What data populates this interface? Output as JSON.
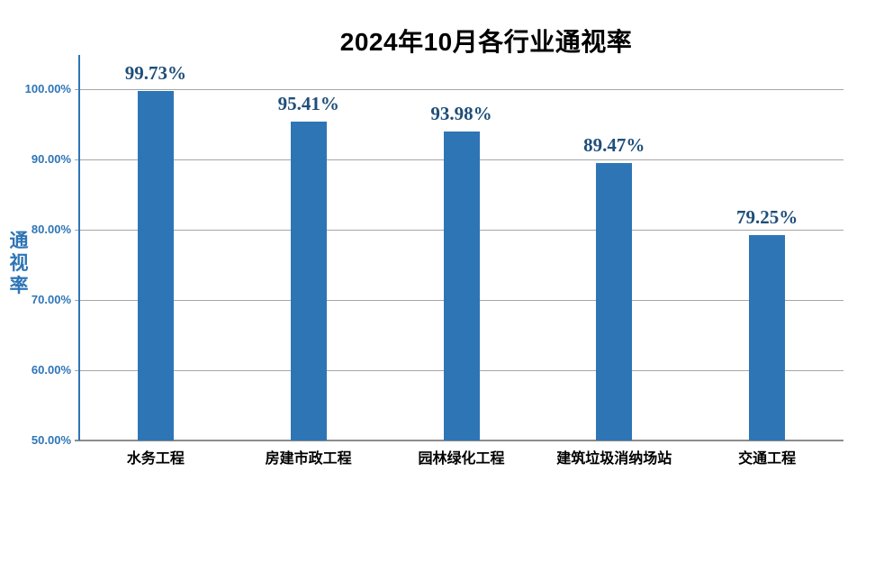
{
  "chart_data": {
    "type": "bar",
    "title": "2024年10月各行业通视率",
    "categories": [
      "水务工程",
      "房建市政工程",
      "园林绿化工程",
      "建筑垃圾消纳场站",
      "交通工程"
    ],
    "values": [
      99.73,
      95.41,
      93.98,
      89.47,
      79.25
    ],
    "value_labels": [
      "99.73%",
      "95.41%",
      "93.98%",
      "89.47%",
      "79.25%"
    ],
    "xlabel": "",
    "ylabel": "通视率",
    "ylim": [
      50,
      100
    ],
    "ytick_values": [
      50,
      60,
      70,
      80,
      90,
      100
    ],
    "ytick_labels": [
      "50.00%",
      "60.00%",
      "70.00%",
      "80.00%",
      "90.00%",
      "100.00%"
    ],
    "grid": true,
    "legend": "none",
    "colors": {
      "bar": "#2E75B6",
      "value_label": "#1F4E79",
      "tick_label": "#2E75B6",
      "axis_line": "#2E75B6",
      "gridline": "#A6A6A6",
      "baseline": "#8C8C8C",
      "title": "#000000",
      "category_label": "#000000",
      "background": "#FFFFFF"
    }
  }
}
